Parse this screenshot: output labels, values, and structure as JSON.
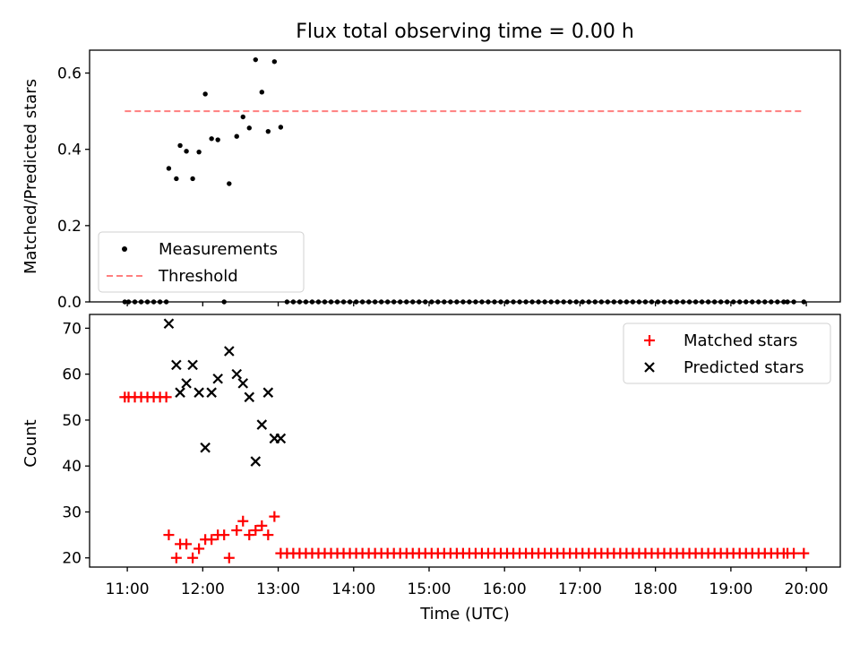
{
  "title": "Flux total observing time = 0.00 h",
  "chart_data": [
    {
      "type": "scatter",
      "ylabel": "Matched/Predicted stars",
      "xlabel": "",
      "xlim": [
        "10:30",
        "20:27"
      ],
      "ylim": [
        0,
        0.66
      ],
      "yticks": [
        "0.0",
        "0.2",
        "0.4",
        "0.6"
      ],
      "grid": false,
      "legend_position": "lower-left",
      "series": [
        {
          "name": "Measurements",
          "kind": "scatter",
          "color": "#000000",
          "points": [
            [
              "10:58",
              0
            ],
            [
              "11:01",
              0
            ],
            [
              "11:06",
              0
            ],
            [
              "11:11",
              0
            ],
            [
              "11:16",
              0
            ],
            [
              "11:21",
              0
            ],
            [
              "11:26",
              0
            ],
            [
              "11:31",
              0
            ],
            [
              "11:33",
              0.35
            ],
            [
              "11:39",
              0.323
            ],
            [
              "11:42",
              0.41
            ],
            [
              "11:47",
              0.395
            ],
            [
              "11:52",
              0.323
            ],
            [
              "11:57",
              0.393
            ],
            [
              "12:02",
              0.545
            ],
            [
              "12:07",
              0.428
            ],
            [
              "12:12",
              0.425
            ],
            [
              "12:17",
              0
            ],
            [
              "12:21",
              0.31
            ],
            [
              "12:27",
              0.434
            ],
            [
              "12:32",
              0.485
            ],
            [
              "12:37",
              0.456
            ],
            [
              "12:42",
              0.635
            ],
            [
              "12:47",
              0.55
            ],
            [
              "12:52",
              0.447
            ],
            [
              "12:57",
              0.63
            ],
            [
              "13:02",
              0.458
            ],
            [
              "13:07",
              0
            ],
            [
              "13:12",
              0
            ],
            [
              "13:17",
              0
            ],
            [
              "13:22",
              0
            ],
            [
              "13:27",
              0
            ],
            [
              "13:32",
              0
            ],
            [
              "13:37",
              0
            ],
            [
              "13:42",
              0
            ],
            [
              "13:47",
              0
            ],
            [
              "13:52",
              0
            ],
            [
              "13:57",
              0
            ],
            [
              "14:02",
              0
            ],
            [
              "14:07",
              0
            ],
            [
              "14:12",
              0
            ],
            [
              "14:17",
              0
            ],
            [
              "14:22",
              0
            ],
            [
              "14:27",
              0
            ],
            [
              "14:32",
              0
            ],
            [
              "14:37",
              0
            ],
            [
              "14:42",
              0
            ],
            [
              "14:47",
              0
            ],
            [
              "14:52",
              0
            ],
            [
              "14:57",
              0
            ],
            [
              "15:02",
              0
            ],
            [
              "15:07",
              0
            ],
            [
              "15:12",
              0
            ],
            [
              "15:17",
              0
            ],
            [
              "15:22",
              0
            ],
            [
              "15:27",
              0
            ],
            [
              "15:32",
              0
            ],
            [
              "15:37",
              0
            ],
            [
              "15:42",
              0
            ],
            [
              "15:47",
              0
            ],
            [
              "15:52",
              0
            ],
            [
              "15:57",
              0
            ],
            [
              "16:02",
              0
            ],
            [
              "16:07",
              0
            ],
            [
              "16:12",
              0
            ],
            [
              "16:17",
              0
            ],
            [
              "16:22",
              0
            ],
            [
              "16:27",
              0
            ],
            [
              "16:32",
              0
            ],
            [
              "16:37",
              0
            ],
            [
              "16:42",
              0
            ],
            [
              "16:47",
              0
            ],
            [
              "16:52",
              0
            ],
            [
              "16:57",
              0
            ],
            [
              "17:02",
              0
            ],
            [
              "17:07",
              0
            ],
            [
              "17:12",
              0
            ],
            [
              "17:17",
              0
            ],
            [
              "17:22",
              0
            ],
            [
              "17:27",
              0
            ],
            [
              "17:32",
              0
            ],
            [
              "17:37",
              0
            ],
            [
              "17:42",
              0
            ],
            [
              "17:47",
              0
            ],
            [
              "17:52",
              0
            ],
            [
              "17:57",
              0
            ],
            [
              "18:02",
              0
            ],
            [
              "18:07",
              0
            ],
            [
              "18:12",
              0
            ],
            [
              "18:17",
              0
            ],
            [
              "18:22",
              0
            ],
            [
              "18:27",
              0
            ],
            [
              "18:32",
              0
            ],
            [
              "18:37",
              0
            ],
            [
              "18:42",
              0
            ],
            [
              "18:47",
              0
            ],
            [
              "18:52",
              0
            ],
            [
              "18:57",
              0
            ],
            [
              "19:02",
              0
            ],
            [
              "19:07",
              0
            ],
            [
              "19:12",
              0
            ],
            [
              "19:17",
              0
            ],
            [
              "19:22",
              0
            ],
            [
              "19:27",
              0
            ],
            [
              "19:32",
              0
            ],
            [
              "19:37",
              0
            ],
            [
              "19:42",
              0
            ],
            [
              "19:45",
              0
            ],
            [
              "19:50",
              0
            ],
            [
              "19:58",
              0
            ]
          ]
        },
        {
          "name": "Threshold",
          "kind": "dashed-line",
          "color": "#ff7f7f",
          "points": [
            [
              "10:58",
              0.5
            ],
            [
              "19:58",
              0.5
            ]
          ]
        }
      ]
    },
    {
      "type": "scatter",
      "ylabel": "Count",
      "xlabel": "Time (UTC)",
      "xlim": [
        "10:30",
        "20:27"
      ],
      "ylim": [
        18,
        73
      ],
      "yticks": [
        "20",
        "30",
        "40",
        "50",
        "60",
        "70"
      ],
      "xticks": [
        "11:00",
        "12:00",
        "13:00",
        "14:00",
        "15:00",
        "16:00",
        "17:00",
        "18:00",
        "19:00",
        "20:00"
      ],
      "grid": false,
      "legend_position": "upper-right",
      "series": [
        {
          "name": "Matched stars",
          "marker": "plus",
          "color": "#ff0000",
          "points": [
            [
              "10:58",
              55
            ],
            [
              "11:01",
              55
            ],
            [
              "11:06",
              55
            ],
            [
              "11:11",
              55
            ],
            [
              "11:16",
              55
            ],
            [
              "11:21",
              55
            ],
            [
              "11:26",
              55
            ],
            [
              "11:31",
              55
            ],
            [
              "11:33",
              25
            ],
            [
              "11:39",
              20
            ],
            [
              "11:42",
              23
            ],
            [
              "11:47",
              23
            ],
            [
              "11:52",
              20
            ],
            [
              "11:57",
              22
            ],
            [
              "12:02",
              24
            ],
            [
              "12:07",
              24
            ],
            [
              "12:12",
              25
            ],
            [
              "12:17",
              25
            ],
            [
              "12:21",
              20
            ],
            [
              "12:27",
              26
            ],
            [
              "12:32",
              28
            ],
            [
              "12:37",
              25
            ],
            [
              "12:42",
              26
            ],
            [
              "12:47",
              27
            ],
            [
              "12:52",
              25
            ],
            [
              "12:57",
              29
            ],
            [
              "13:02",
              21
            ],
            [
              "13:07",
              21
            ],
            [
              "13:12",
              21
            ],
            [
              "13:17",
              21
            ],
            [
              "13:22",
              21
            ],
            [
              "13:27",
              21
            ],
            [
              "13:32",
              21
            ],
            [
              "13:37",
              21
            ],
            [
              "13:42",
              21
            ],
            [
              "13:47",
              21
            ],
            [
              "13:52",
              21
            ],
            [
              "13:57",
              21
            ],
            [
              "14:02",
              21
            ],
            [
              "14:07",
              21
            ],
            [
              "14:12",
              21
            ],
            [
              "14:17",
              21
            ],
            [
              "14:22",
              21
            ],
            [
              "14:27",
              21
            ],
            [
              "14:32",
              21
            ],
            [
              "14:37",
              21
            ],
            [
              "14:42",
              21
            ],
            [
              "14:47",
              21
            ],
            [
              "14:52",
              21
            ],
            [
              "14:57",
              21
            ],
            [
              "15:02",
              21
            ],
            [
              "15:07",
              21
            ],
            [
              "15:12",
              21
            ],
            [
              "15:17",
              21
            ],
            [
              "15:22",
              21
            ],
            [
              "15:27",
              21
            ],
            [
              "15:32",
              21
            ],
            [
              "15:37",
              21
            ],
            [
              "15:42",
              21
            ],
            [
              "15:47",
              21
            ],
            [
              "15:52",
              21
            ],
            [
              "15:57",
              21
            ],
            [
              "16:02",
              21
            ],
            [
              "16:07",
              21
            ],
            [
              "16:12",
              21
            ],
            [
              "16:17",
              21
            ],
            [
              "16:22",
              21
            ],
            [
              "16:27",
              21
            ],
            [
              "16:32",
              21
            ],
            [
              "16:37",
              21
            ],
            [
              "16:42",
              21
            ],
            [
              "16:47",
              21
            ],
            [
              "16:52",
              21
            ],
            [
              "16:57",
              21
            ],
            [
              "17:02",
              21
            ],
            [
              "17:07",
              21
            ],
            [
              "17:12",
              21
            ],
            [
              "17:17",
              21
            ],
            [
              "17:22",
              21
            ],
            [
              "17:27",
              21
            ],
            [
              "17:32",
              21
            ],
            [
              "17:37",
              21
            ],
            [
              "17:42",
              21
            ],
            [
              "17:47",
              21
            ],
            [
              "17:52",
              21
            ],
            [
              "17:57",
              21
            ],
            [
              "18:02",
              21
            ],
            [
              "18:07",
              21
            ],
            [
              "18:12",
              21
            ],
            [
              "18:17",
              21
            ],
            [
              "18:22",
              21
            ],
            [
              "18:27",
              21
            ],
            [
              "18:32",
              21
            ],
            [
              "18:37",
              21
            ],
            [
              "18:42",
              21
            ],
            [
              "18:47",
              21
            ],
            [
              "18:52",
              21
            ],
            [
              "18:57",
              21
            ],
            [
              "19:02",
              21
            ],
            [
              "19:07",
              21
            ],
            [
              "19:12",
              21
            ],
            [
              "19:17",
              21
            ],
            [
              "19:22",
              21
            ],
            [
              "19:27",
              21
            ],
            [
              "19:32",
              21
            ],
            [
              "19:37",
              21
            ],
            [
              "19:42",
              21
            ],
            [
              "19:45",
              21
            ],
            [
              "19:50",
              21
            ],
            [
              "19:58",
              21
            ]
          ]
        },
        {
          "name": "Predicted stars",
          "marker": "x",
          "color": "#000000",
          "points": [
            [
              "11:33",
              71
            ],
            [
              "11:39",
              62
            ],
            [
              "11:42",
              56
            ],
            [
              "11:47",
              58
            ],
            [
              "11:52",
              62
            ],
            [
              "11:57",
              56
            ],
            [
              "12:02",
              44
            ],
            [
              "12:07",
              56
            ],
            [
              "12:12",
              59
            ],
            [
              "12:21",
              65
            ],
            [
              "12:27",
              60
            ],
            [
              "12:32",
              58
            ],
            [
              "12:37",
              55
            ],
            [
              "12:42",
              41
            ],
            [
              "12:47",
              49
            ],
            [
              "12:52",
              56
            ],
            [
              "12:57",
              46
            ],
            [
              "13:02",
              46
            ]
          ]
        }
      ]
    }
  ]
}
